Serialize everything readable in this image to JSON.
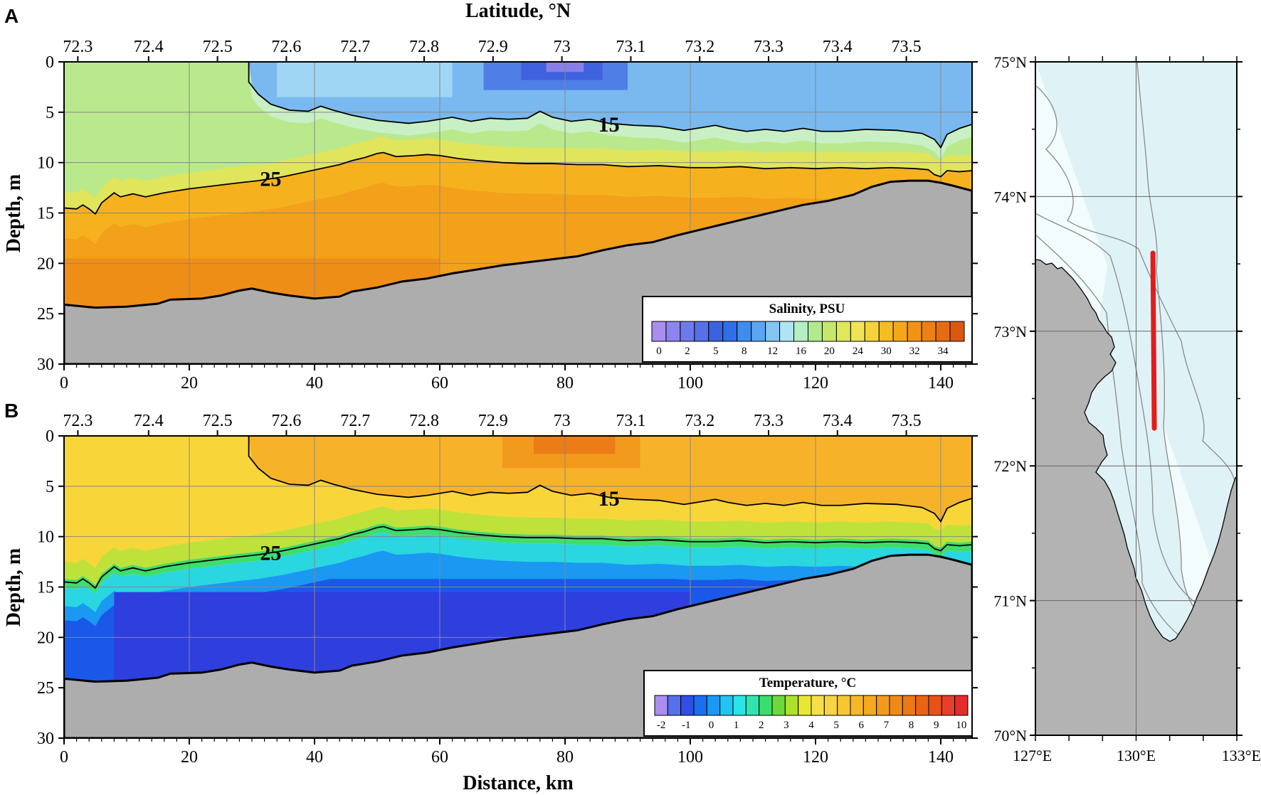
{
  "chart_data": [
    {
      "panel": "A",
      "type": "heatmap",
      "top_axis_label": "Latitude, °N",
      "xlabel": "",
      "ylabel": "Depth, m",
      "x_ticks": [
        0,
        20,
        40,
        60,
        80,
        100,
        120,
        140
      ],
      "xlim": [
        0,
        145
      ],
      "latitude_ticks": [
        "72.3",
        "72.4",
        "72.5",
        "72.6",
        "72.7",
        "72.8",
        "72.9",
        "73",
        "73.1",
        "73.2",
        "73.3",
        "73.4",
        "73.5"
      ],
      "latitude_tick_positions_km": [
        2.2,
        13.5,
        24.5,
        35.5,
        46.5,
        57.5,
        68.5,
        79.5,
        90.5,
        101.5,
        112.5,
        123.5,
        134.5
      ],
      "y_ticks": [
        0,
        5,
        10,
        15,
        20,
        25,
        30
      ],
      "ylim": [
        30,
        0
      ],
      "variable": "Salinity",
      "legend_title": "Salinity, PSU",
      "legend_ticks": [
        "0",
        "2",
        "5",
        "8",
        "12",
        "16",
        "20",
        "24",
        "30",
        "32",
        "34"
      ],
      "legend_colors": [
        "#a98ef0",
        "#8d84ee",
        "#6e7aec",
        "#5570e8",
        "#3b62e0",
        "#2f6ee8",
        "#3f8cef",
        "#5aa6f0",
        "#86c4f2",
        "#b0e4f4",
        "#b4efc4",
        "#b0ea90",
        "#c6e86a",
        "#dde85a",
        "#eee456",
        "#f6d23c",
        "#f6bd22",
        "#f4a818",
        "#f19414",
        "#ec8012",
        "#e56c10",
        "#dc5810"
      ],
      "contours": [
        {
          "label": "15",
          "label_km": 87,
          "label_depth": 6.2,
          "points": [
            [
              29.5,
              0
            ],
            [
              29.5,
              2
            ],
            [
              31,
              3.2
            ],
            [
              33,
              4.2
            ],
            [
              36,
              4.8
            ],
            [
              39,
              4.9
            ],
            [
              41,
              4.4
            ],
            [
              43,
              4.8
            ],
            [
              46,
              5.3
            ],
            [
              50,
              5.8
            ],
            [
              55,
              6.1
            ],
            [
              58,
              5.9
            ],
            [
              62,
              5.5
            ],
            [
              65,
              5.9
            ],
            [
              68,
              5.6
            ],
            [
              71,
              5.7
            ],
            [
              74,
              5.6
            ],
            [
              76,
              4.9
            ],
            [
              78,
              5.5
            ],
            [
              81,
              5.9
            ],
            [
              84,
              5.7
            ],
            [
              87,
              6.1
            ],
            [
              91,
              6.3
            ],
            [
              95,
              6.4
            ],
            [
              99,
              6.8
            ],
            [
              102,
              6.5
            ],
            [
              104,
              6.3
            ],
            [
              106,
              6.6
            ],
            [
              109,
              6.9
            ],
            [
              112,
              6.7
            ],
            [
              115,
              6.9
            ],
            [
              118,
              6.6
            ],
            [
              121,
              6.9
            ],
            [
              124,
              6.9
            ],
            [
              128,
              6.7
            ],
            [
              133,
              6.8
            ],
            [
              137,
              7.1
            ],
            [
              139,
              7.7
            ],
            [
              140,
              8.5
            ],
            [
              141,
              7.2
            ],
            [
              143,
              6.6
            ],
            [
              145,
              6.2
            ]
          ]
        },
        {
          "label": "25",
          "label_km": 33,
          "label_depth": 11.6,
          "points": [
            [
              0,
              14.5
            ],
            [
              2,
              14.6
            ],
            [
              3,
              14.2
            ],
            [
              4,
              14.6
            ],
            [
              5,
              15.1
            ],
            [
              6,
              14.0
            ],
            [
              8,
              13.0
            ],
            [
              9,
              13.4
            ],
            [
              11,
              13.1
            ],
            [
              13,
              13.4
            ],
            [
              16,
              13.0
            ],
            [
              20,
              12.6
            ],
            [
              24,
              12.3
            ],
            [
              28,
              12.0
            ],
            [
              31,
              11.8
            ],
            [
              35,
              11.4
            ],
            [
              38,
              11.0
            ],
            [
              41,
              10.6
            ],
            [
              44,
              10.2
            ],
            [
              46,
              9.8
            ],
            [
              48,
              9.5
            ],
            [
              50,
              9.1
            ],
            [
              51,
              9.0
            ],
            [
              53,
              9.4
            ],
            [
              56,
              9.3
            ],
            [
              58,
              9.2
            ],
            [
              60,
              9.3
            ],
            [
              63,
              9.6
            ],
            [
              66,
              9.8
            ],
            [
              70,
              10.0
            ],
            [
              74,
              10.1
            ],
            [
              78,
              10.1
            ],
            [
              82,
              10.2
            ],
            [
              86,
              10.2
            ],
            [
              90,
              10.4
            ],
            [
              95,
              10.3
            ],
            [
              100,
              10.5
            ],
            [
              104,
              10.5
            ],
            [
              108,
              10.4
            ],
            [
              112,
              10.6
            ],
            [
              116,
              10.5
            ],
            [
              120,
              10.6
            ],
            [
              124,
              10.5
            ],
            [
              128,
              10.6
            ],
            [
              132,
              10.5
            ],
            [
              136,
              10.6
            ],
            [
              138,
              10.7
            ],
            [
              139,
              11.2
            ],
            [
              140,
              11.4
            ],
            [
              141,
              10.8
            ],
            [
              143,
              10.9
            ],
            [
              145,
              10.8
            ]
          ]
        }
      ],
      "bottom_depth_profile": [
        [
          0,
          24.1
        ],
        [
          5,
          24.4
        ],
        [
          10,
          24.3
        ],
        [
          15,
          24.0
        ],
        [
          17,
          23.6
        ],
        [
          22,
          23.5
        ],
        [
          25,
          23.2
        ],
        [
          28,
          22.7
        ],
        [
          30,
          22.5
        ],
        [
          33,
          22.9
        ],
        [
          36,
          23.2
        ],
        [
          40,
          23.5
        ],
        [
          44,
          23.3
        ],
        [
          46,
          22.8
        ],
        [
          50,
          22.4
        ],
        [
          54,
          21.8
        ],
        [
          58,
          21.5
        ],
        [
          62,
          21.0
        ],
        [
          66,
          20.6
        ],
        [
          70,
          20.2
        ],
        [
          74,
          19.9
        ],
        [
          78,
          19.6
        ],
        [
          82,
          19.3
        ],
        [
          86,
          18.7
        ],
        [
          90,
          18.2
        ],
        [
          94,
          17.9
        ],
        [
          98,
          17.2
        ],
        [
          102,
          16.6
        ],
        [
          106,
          16.0
        ],
        [
          110,
          15.4
        ],
        [
          114,
          14.8
        ],
        [
          118,
          14.2
        ],
        [
          122,
          13.8
        ],
        [
          126,
          13.2
        ],
        [
          129,
          12.4
        ],
        [
          132,
          11.9
        ],
        [
          135,
          11.8
        ],
        [
          138,
          11.8
        ],
        [
          140,
          12.0
        ],
        [
          142,
          12.3
        ],
        [
          145,
          12.8
        ]
      ]
    },
    {
      "panel": "B",
      "type": "heatmap",
      "xlabel": "Distance, km",
      "ylabel": "Depth, m",
      "x_ticks": [
        0,
        20,
        40,
        60,
        80,
        100,
        120,
        140
      ],
      "xlim": [
        0,
        145
      ],
      "latitude_ticks": [
        "72.3",
        "72.4",
        "72.5",
        "72.6",
        "72.7",
        "72.8",
        "72.9",
        "73",
        "73.1",
        "73.2",
        "73.3",
        "73.4",
        "73.5"
      ],
      "y_ticks": [
        0,
        5,
        10,
        15,
        20,
        25,
        30
      ],
      "ylim": [
        30,
        0
      ],
      "variable": "Temperature",
      "legend_title": "Temperature, °C",
      "legend_ticks": [
        "-2",
        "-1",
        "0",
        "1",
        "2",
        "3",
        "4",
        "5",
        "6",
        "7",
        "8",
        "9",
        "10"
      ],
      "legend_colors": [
        "#a98ef0",
        "#5570e8",
        "#2f4fe6",
        "#1a6ef0",
        "#1a98f2",
        "#22c4f2",
        "#2ae4e6",
        "#30e4b0",
        "#3ade6c",
        "#6cd83a",
        "#aee02c",
        "#e6e832",
        "#f6e04a",
        "#f8d442",
        "#f6c634",
        "#f6b828",
        "#f4aa20",
        "#f29a1c",
        "#ef8a18",
        "#ec7816",
        "#e96414",
        "#e85218",
        "#e64028",
        "#e42c2c"
      ],
      "contours": [
        {
          "label": "15",
          "label_km": 87,
          "label_depth": 6.2
        },
        {
          "label": "25",
          "label_km": 33,
          "label_depth": 11.6
        }
      ]
    },
    {
      "panel": "map",
      "type": "map",
      "lon_ticks": [
        "127°E",
        "130°E",
        "133°E"
      ],
      "lon_values": [
        127,
        130,
        133
      ],
      "lat_ticks": [
        "75°N",
        "74°N",
        "73°N",
        "72°N",
        "71°N",
        "70°N"
      ],
      "lat_values": [
        75,
        74,
        73,
        72,
        71,
        70
      ],
      "transect": {
        "lon": 130.5,
        "lat_start": 72.28,
        "lat_end": 73.58,
        "color": "#e21c1c"
      },
      "sea_color": "#f2fcfd",
      "shelf_color": "#dff3f7",
      "land_color": "#b3b3b3"
    }
  ]
}
